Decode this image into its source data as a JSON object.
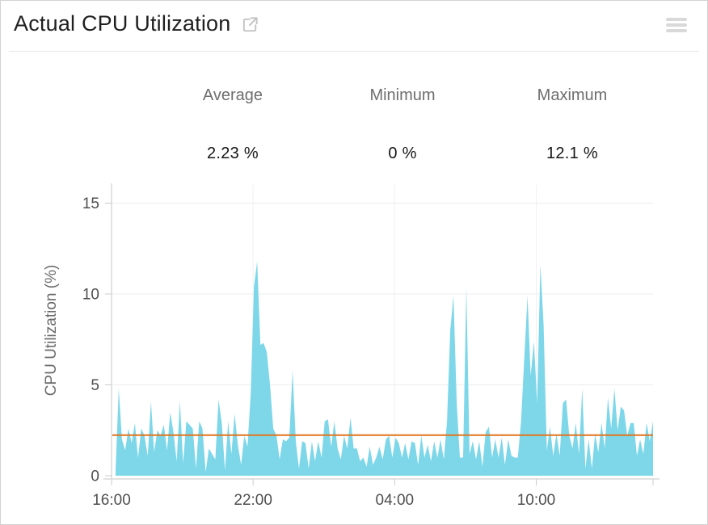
{
  "header": {
    "title": "Actual CPU Utilization",
    "popout_icon": "external-link",
    "menu_icon": "hamburger-menu"
  },
  "stats": {
    "average": {
      "label": "Average",
      "value": "2.23 %"
    },
    "minimum": {
      "label": "Minimum",
      "value": "0 %"
    },
    "maximum": {
      "label": "Maximum",
      "value": "12.1 %"
    }
  },
  "colors": {
    "area": "#7ed7e9",
    "average_line": "#e0751d",
    "grid_h": "#ececec",
    "grid_v": "#f0f0f0",
    "axis": "#e2e2e2",
    "tick": "#cccccc",
    "tick_text": "#4f4f4f",
    "axis_title_text": "#6b6b6b",
    "icon_gray": "#c3c3c3",
    "border": "#d2d2d2"
  },
  "chart_data": {
    "type": "area",
    "title": "Actual CPU Utilization",
    "ylabel": "CPU Utilization (%)",
    "xlabel": "",
    "legend": "none",
    "grid": true,
    "y_domain": [
      0,
      16
    ],
    "y_ticks": [
      0,
      5,
      10,
      15
    ],
    "x_domain": [
      0,
      22.95
    ],
    "x_ticks": [
      {
        "t": 0,
        "label": "16:00"
      },
      {
        "t": 6,
        "label": "22:00"
      },
      {
        "t": 12,
        "label": "04:00"
      },
      {
        "t": 18,
        "label": "10:00"
      }
    ],
    "x_unit": "hours since 16:00",
    "x_start": 0.17,
    "x_step": 0.1364,
    "average": 2.23,
    "minimum": 0,
    "maximum": 12.1,
    "values": [
      0.3,
      4.8,
      2.0,
      1.4,
      2.6,
      1.8,
      2.9,
      1.0,
      2.6,
      2.2,
      1.1,
      4.1,
      1.3,
      2.5,
      2.2,
      2.8,
      1.4,
      3.5,
      2.4,
      0.8,
      4.1,
      0.7,
      3.0,
      2.8,
      2.6,
      0.4,
      3.0,
      2.6,
      0.2,
      1.5,
      1.2,
      0.9,
      4.2,
      2.9,
      0.3,
      3.0,
      1.2,
      3.4,
      1.7,
      0.6,
      2.2,
      1.6,
      4.5,
      10.4,
      11.8,
      7.2,
      7.3,
      6.8,
      5.0,
      2.6,
      2.2,
      0.9,
      2.0,
      1.9,
      2.1,
      5.8,
      1.9,
      0.4,
      1.9,
      1.8,
      0.4,
      1.9,
      0.8,
      1.9,
      1.0,
      3.0,
      3.1,
      1.6,
      3.0,
      1.5,
      0.9,
      2.2,
      1.5,
      3.2,
      1.5,
      1.5,
      0.8,
      1.0,
      0.5,
      1.6,
      0.6,
      1.0,
      1.6,
      0.9,
      2.0,
      2.2,
      1.0,
      2.1,
      1.8,
      1.0,
      1.8,
      0.9,
      1.9,
      1.8,
      0.6,
      2.2,
      1.0,
      1.7,
      0.8,
      1.9,
      1.0,
      2.0,
      0.9,
      3.0,
      8.0,
      9.9,
      4.0,
      1.0,
      1.0,
      10.4,
      1.2,
      1.9,
      0.9,
      1.9,
      0.5,
      2.4,
      2.7,
      1.0,
      2.0,
      1.0,
      2.1,
      0.6,
      2.0,
      1.1,
      1.0,
      1.0,
      3.0,
      6.5,
      9.9,
      5.5,
      7.4,
      4.0,
      11.6,
      8.3,
      1.4,
      2.7,
      1.1,
      2.3,
      1.1,
      4.0,
      4.2,
      2.2,
      1.5,
      2.9,
      1.2,
      4.8,
      0.4,
      2.0,
      0.4,
      2.3,
      1.3,
      2.9,
      1.5,
      4.3,
      2.6,
      4.8,
      2.5,
      3.8,
      3.6,
      2.2,
      2.9,
      2.9,
      1.1,
      2.0,
      1.2,
      2.9,
      1.9,
      3.0
    ]
  }
}
